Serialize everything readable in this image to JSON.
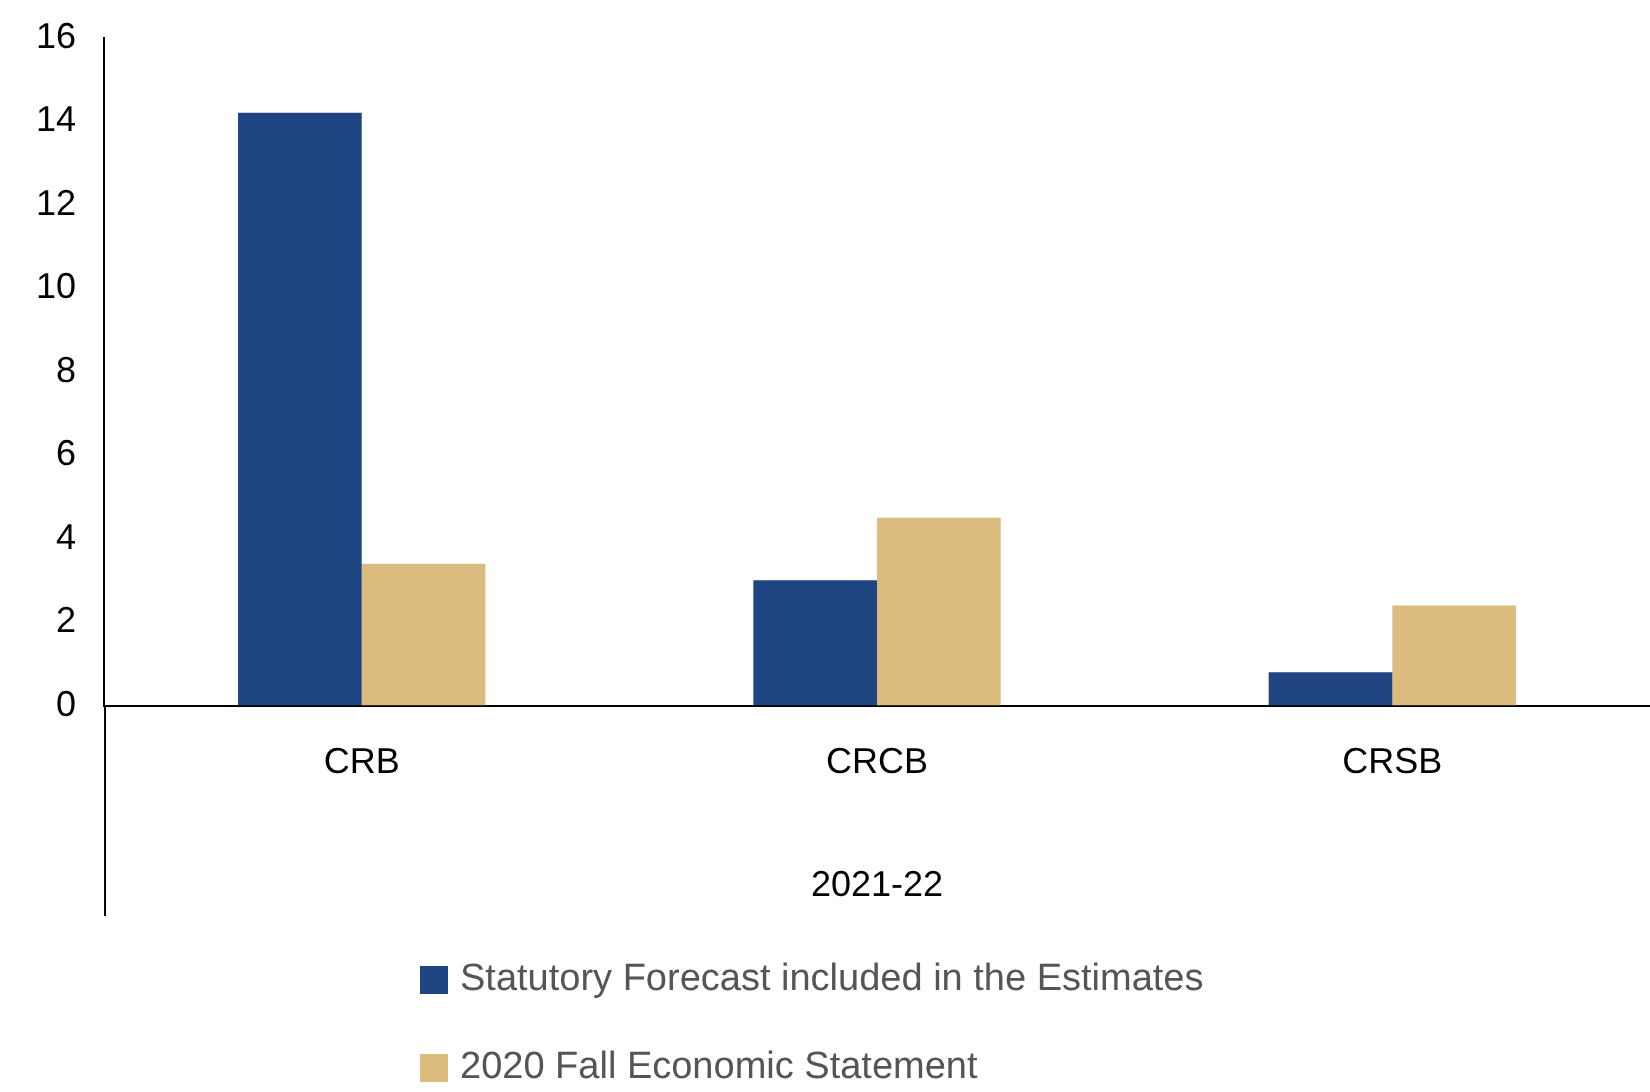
{
  "chart_data": {
    "type": "bar",
    "xlabel": "2021-22",
    "categories": [
      "CRB",
      "CRCB",
      "CRSB"
    ],
    "series": [
      {
        "name": "Statutory Forecast included in the Estimates",
        "color": "#1f4482",
        "values": [
          14.2,
          3.0,
          0.8
        ]
      },
      {
        "name": "2020 Fall Economic Statement",
        "color": "#dcbb7e",
        "values": [
          3.4,
          4.5,
          2.4
        ]
      }
    ],
    "ylim": [
      0,
      16
    ],
    "yticks": [
      0,
      2,
      4,
      6,
      8,
      10,
      12,
      14,
      16
    ],
    "grid": false,
    "legend": "bottom"
  }
}
